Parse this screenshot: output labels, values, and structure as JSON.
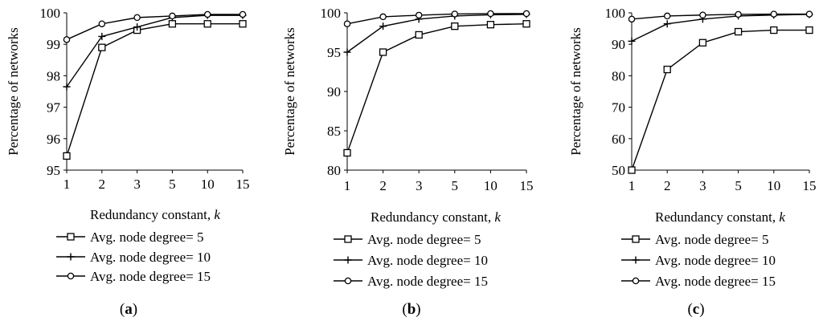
{
  "colors": {
    "line": "#000000",
    "background": "#ffffff",
    "marker_fill": "#ffffff"
  },
  "chart_data": [
    {
      "type": "line",
      "panel_label": "a",
      "xlabel": "Redundancy constant, k",
      "ylabel": "Percentage of networks",
      "categories": [
        "1",
        "2",
        "3",
        "5",
        "10",
        "15"
      ],
      "ylim": [
        95,
        100
      ],
      "yticks": [
        95,
        96,
        97,
        98,
        99,
        100
      ],
      "series": [
        {
          "name": "Avg. node degree= 5",
          "marker": "square",
          "values": [
            95.45,
            98.9,
            99.45,
            99.65,
            99.65,
            99.65
          ]
        },
        {
          "name": "Avg. node degree= 10",
          "marker": "plus",
          "values": [
            97.65,
            99.25,
            99.55,
            99.85,
            99.92,
            99.92
          ]
        },
        {
          "name": "Avg. node degree= 15",
          "marker": "circle",
          "values": [
            99.15,
            99.65,
            99.85,
            99.9,
            99.95,
            99.95
          ]
        }
      ]
    },
    {
      "type": "line",
      "panel_label": "b",
      "xlabel": "Redundancy constant, k",
      "ylabel": "Percentage of networks",
      "categories": [
        "1",
        "2",
        "3",
        "5",
        "10",
        "15"
      ],
      "ylim": [
        80,
        100
      ],
      "yticks": [
        80,
        85,
        90,
        95,
        100
      ],
      "series": [
        {
          "name": "Avg. node degree= 5",
          "marker": "square",
          "values": [
            82.2,
            95.0,
            97.2,
            98.3,
            98.5,
            98.6
          ]
        },
        {
          "name": "Avg. node degree= 10",
          "marker": "plus",
          "values": [
            95.0,
            98.3,
            99.2,
            99.6,
            99.75,
            99.8
          ]
        },
        {
          "name": "Avg. node degree= 15",
          "marker": "circle",
          "values": [
            98.6,
            99.5,
            99.7,
            99.85,
            99.9,
            99.9
          ]
        }
      ]
    },
    {
      "type": "line",
      "panel_label": "c",
      "xlabel": "Redundancy constant, k",
      "ylabel": "Percentage of networks",
      "categories": [
        "1",
        "2",
        "3",
        "5",
        "10",
        "15"
      ],
      "ylim": [
        50,
        100
      ],
      "yticks": [
        50,
        60,
        70,
        80,
        90,
        100
      ],
      "series": [
        {
          "name": "Avg. node degree= 5",
          "marker": "square",
          "values": [
            50.0,
            82.0,
            90.5,
            94.0,
            94.5,
            94.5
          ]
        },
        {
          "name": "Avg. node degree= 10",
          "marker": "plus",
          "values": [
            91.0,
            96.5,
            98.0,
            99.0,
            99.3,
            99.5
          ]
        },
        {
          "name": "Avg. node degree= 15",
          "marker": "circle",
          "values": [
            98.0,
            99.0,
            99.3,
            99.5,
            99.6,
            99.6
          ]
        }
      ]
    }
  ]
}
